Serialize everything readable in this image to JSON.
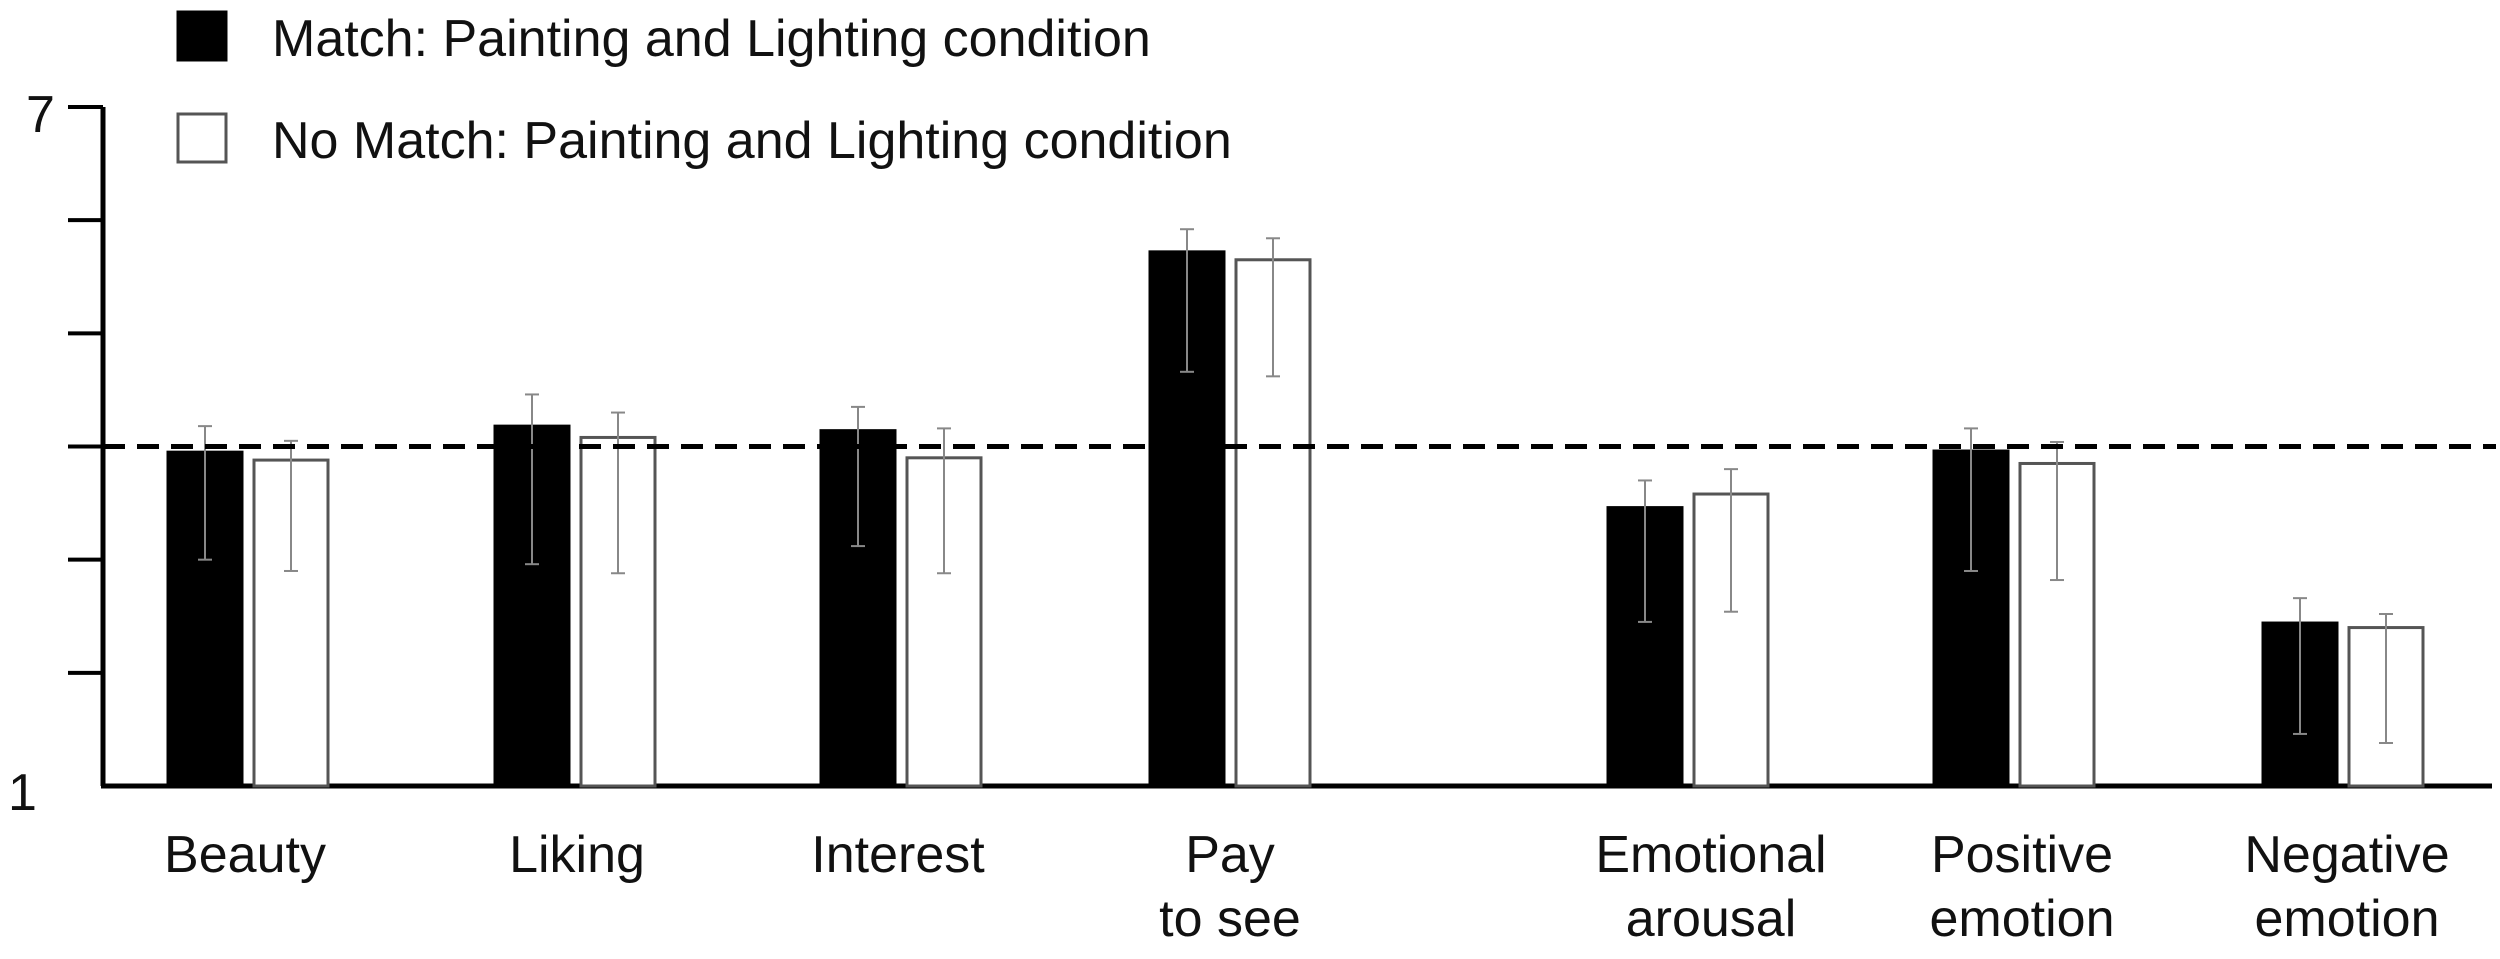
{
  "chart_data": {
    "type": "bar",
    "y_ticks": {
      "min_label": "1",
      "max_label": "7"
    },
    "ylim": [
      1,
      7
    ],
    "y_minor_ticks": [
      2,
      3,
      4,
      5,
      6
    ],
    "reference_line": 4,
    "grid": false,
    "legend_position": "top-left",
    "categories": [
      [
        "Beauty"
      ],
      [
        "Liking"
      ],
      [
        "Interest"
      ],
      [
        "Pay",
        "to see"
      ],
      [
        "Emotional",
        "arousal"
      ],
      [
        "Positive",
        "emotion"
      ],
      [
        "Negative",
        "emotion"
      ]
    ],
    "series": [
      {
        "name": "Match: Painting and Lighting condition",
        "color": "#000000",
        "values": [
          3.95,
          4.18,
          4.14,
          5.72,
          3.46,
          3.96,
          2.44
        ],
        "error_low": [
          3.0,
          2.96,
          3.12,
          4.66,
          2.45,
          2.9,
          1.46
        ],
        "error_high": [
          4.18,
          4.46,
          4.35,
          5.92,
          3.7,
          4.16,
          2.66
        ]
      },
      {
        "name": "No Match: Painting and Lighting condition",
        "color": "#ffffff",
        "values": [
          3.88,
          4.08,
          3.9,
          5.65,
          3.58,
          3.85,
          2.4
        ],
        "error_low": [
          2.9,
          2.88,
          2.88,
          4.62,
          2.54,
          2.82,
          1.38
        ],
        "error_high": [
          4.05,
          4.3,
          4.16,
          5.84,
          3.8,
          4.04,
          2.52
        ]
      }
    ]
  }
}
